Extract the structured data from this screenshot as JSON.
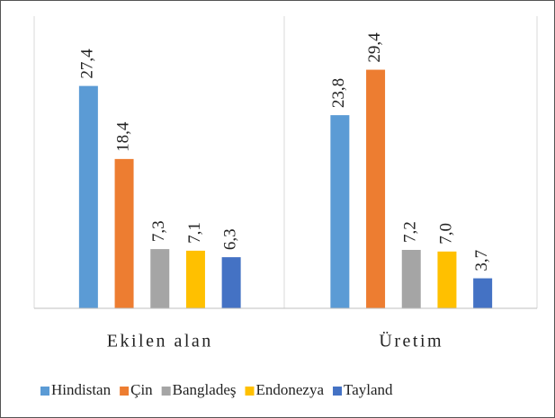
{
  "chart_data": {
    "type": "bar",
    "categories": [
      "Ekilen alan",
      "Üretim"
    ],
    "series": [
      {
        "name": "Hindistan",
        "color": "#5b9bd5",
        "values": [
          27.4,
          23.8
        ],
        "value_labels": [
          "27,4",
          "23,8"
        ]
      },
      {
        "name": "Çin",
        "color": "#ed7d31",
        "values": [
          18.4,
          29.4
        ],
        "value_labels": [
          "18,4",
          "29,4"
        ]
      },
      {
        "name": "Bangladeş",
        "color": "#a5a5a5",
        "values": [
          7.3,
          7.2
        ],
        "value_labels": [
          "7,3",
          "7,2"
        ]
      },
      {
        "name": "Endonezya",
        "color": "#ffc000",
        "values": [
          7.1,
          7.0
        ],
        "value_labels": [
          "7,1",
          "7,0"
        ]
      },
      {
        "name": "Tayland",
        "color": "#4472c4",
        "values": [
          6.3,
          3.7
        ],
        "value_labels": [
          "6,3",
          "3,7"
        ]
      }
    ],
    "ylim": [
      0,
      35
    ],
    "legend": "bottom"
  }
}
